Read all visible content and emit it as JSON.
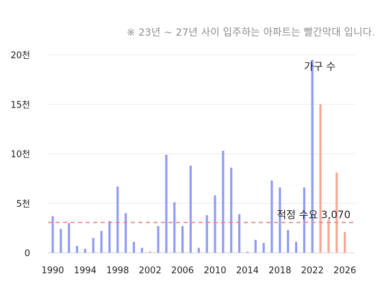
{
  "note": "※ 23년 ~ 27년 사이 입주하는 아파트는 빨간막대 입니다.",
  "chart_data": {
    "type": "bar",
    "series_label": "가구 수",
    "x": [
      1990,
      1991,
      1992,
      1993,
      1994,
      1995,
      1996,
      1997,
      1998,
      1999,
      2000,
      2001,
      2002,
      2003,
      2004,
      2005,
      2006,
      2007,
      2008,
      2009,
      2010,
      2011,
      2012,
      2013,
      2014,
      2015,
      2016,
      2017,
      2018,
      2019,
      2020,
      2021,
      2022,
      2023,
      2024,
      2025,
      2026
    ],
    "values": [
      3700,
      2400,
      3000,
      700,
      400,
      1500,
      2200,
      3200,
      6700,
      4000,
      1100,
      500,
      100,
      2700,
      9900,
      5100,
      2700,
      8800,
      500,
      3800,
      5800,
      10300,
      8600,
      3900,
      100,
      1300,
      1000,
      7300,
      6600,
      2300,
      1100,
      6600,
      19500,
      15000,
      3300,
      8100,
      2100
    ],
    "highlight_from": 2023,
    "colors": {
      "normal": "#8f9bf2",
      "highlight": "#f5a795",
      "reference": "#f28080"
    },
    "ylim": [
      0,
      20000
    ],
    "yticks": [
      {
        "value": 0,
        "label": "0"
      },
      {
        "value": 5000,
        "label": "5천"
      },
      {
        "value": 10000,
        "label": "10천"
      },
      {
        "value": 15000,
        "label": "15천"
      },
      {
        "value": 20000,
        "label": "20천"
      }
    ],
    "xticks": [
      1990,
      1994,
      1998,
      2002,
      2006,
      2010,
      2014,
      2018,
      2022,
      2026
    ],
    "reference_line": {
      "value": 3070,
      "label": "적정 수요 3,070"
    },
    "grid": true
  }
}
